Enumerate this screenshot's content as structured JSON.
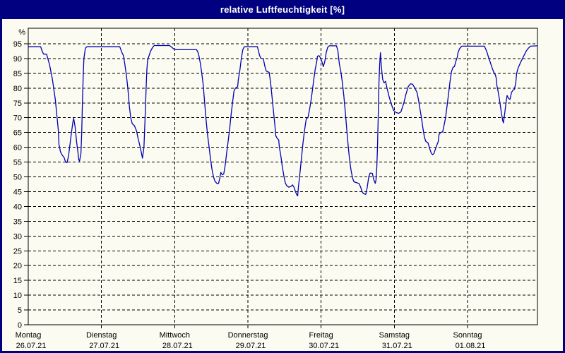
{
  "window": {
    "title": "relative Luftfeuchtigkeit [%]"
  },
  "colors": {
    "frame": "#000080",
    "title_bar": "#000080",
    "title_text": "#FFFFFF",
    "background": "#FBFBF1",
    "plot_border": "#000000",
    "gridline": "#000000",
    "axis_text": "#000000",
    "line": "#0000B4"
  },
  "chart_data": {
    "type": "line",
    "title": "relative Luftfeuchtigkeit [%]",
    "xlabel": "",
    "ylabel": "%",
    "ylim": [
      0,
      95
    ],
    "ytick_step": 5,
    "grid": "dashed",
    "legend": "none",
    "x_unit": "days since Montag 26.07.21 00:00",
    "categories": [
      "Montag",
      "Dienstag",
      "Mittwoch",
      "Donnerstag",
      "Freitag",
      "Samstag",
      "Sonntag"
    ],
    "dates": [
      "26.07.21",
      "27.07.21",
      "28.07.21",
      "29.07.21",
      "30.07.21",
      "31.07.21",
      "01.08.21"
    ],
    "series": [
      {
        "name": "relative Luftfeuchtigkeit",
        "color": "#0000B4",
        "points": [
          [
            0.0,
            94
          ],
          [
            0.17,
            94
          ],
          [
            0.19,
            92.5
          ],
          [
            0.21,
            91.5
          ],
          [
            0.25,
            91.5
          ],
          [
            0.29,
            88
          ],
          [
            0.33,
            83
          ],
          [
            0.37,
            76
          ],
          [
            0.39,
            71
          ],
          [
            0.41,
            66
          ],
          [
            0.42,
            61
          ],
          [
            0.44,
            58.5
          ],
          [
            0.46,
            57.5
          ],
          [
            0.49,
            56.5
          ],
          [
            0.51,
            55
          ],
          [
            0.53,
            54.8
          ],
          [
            0.55,
            57
          ],
          [
            0.57,
            61
          ],
          [
            0.59,
            65
          ],
          [
            0.61,
            68.5
          ],
          [
            0.62,
            69.8
          ],
          [
            0.64,
            67
          ],
          [
            0.66,
            62
          ],
          [
            0.68,
            58
          ],
          [
            0.69,
            55.8
          ],
          [
            0.7,
            55.3
          ],
          [
            0.72,
            58
          ],
          [
            0.73,
            65
          ],
          [
            0.74,
            75
          ],
          [
            0.75,
            84
          ],
          [
            0.76,
            90
          ],
          [
            0.78,
            93.5
          ],
          [
            0.8,
            94
          ],
          [
            1.25,
            94
          ],
          [
            1.28,
            92
          ],
          [
            1.3,
            91
          ],
          [
            1.32,
            88
          ],
          [
            1.34,
            84.5
          ],
          [
            1.36,
            80
          ],
          [
            1.38,
            74
          ],
          [
            1.4,
            70
          ],
          [
            1.42,
            68
          ],
          [
            1.45,
            67.3
          ],
          [
            1.48,
            65.5
          ],
          [
            1.5,
            63
          ],
          [
            1.53,
            60
          ],
          [
            1.55,
            57.5
          ],
          [
            1.56,
            56.3
          ],
          [
            1.58,
            60
          ],
          [
            1.59,
            66
          ],
          [
            1.6,
            73
          ],
          [
            1.61,
            80
          ],
          [
            1.62,
            86
          ],
          [
            1.63,
            89.5
          ],
          [
            1.65,
            91
          ],
          [
            1.67,
            92.5
          ],
          [
            1.7,
            93.8
          ],
          [
            1.72,
            94.4
          ],
          [
            1.93,
            94.4
          ],
          [
            1.96,
            93.8
          ],
          [
            1.99,
            93.2
          ],
          [
            2.03,
            93
          ],
          [
            2.3,
            93
          ],
          [
            2.32,
            92
          ],
          [
            2.33,
            91
          ],
          [
            2.35,
            88.5
          ],
          [
            2.37,
            85
          ],
          [
            2.39,
            81
          ],
          [
            2.41,
            75
          ],
          [
            2.43,
            69
          ],
          [
            2.45,
            64
          ],
          [
            2.47,
            60
          ],
          [
            2.49,
            56
          ],
          [
            2.51,
            52.5
          ],
          [
            2.53,
            50
          ],
          [
            2.55,
            48.5
          ],
          [
            2.58,
            47.7
          ],
          [
            2.6,
            47.8
          ],
          [
            2.62,
            50
          ],
          [
            2.63,
            51.5
          ],
          [
            2.65,
            50.7
          ],
          [
            2.67,
            51
          ],
          [
            2.69,
            54
          ],
          [
            2.71,
            58
          ],
          [
            2.73,
            62
          ],
          [
            2.75,
            66
          ],
          [
            2.77,
            71
          ],
          [
            2.79,
            75
          ],
          [
            2.81,
            79
          ],
          [
            2.83,
            80
          ],
          [
            2.86,
            80.5
          ],
          [
            2.87,
            83
          ],
          [
            2.89,
            86
          ],
          [
            2.91,
            90
          ],
          [
            2.93,
            93
          ],
          [
            2.95,
            94
          ],
          [
            3.13,
            94
          ],
          [
            3.14,
            93
          ],
          [
            3.16,
            91
          ],
          [
            3.18,
            90
          ],
          [
            3.21,
            90
          ],
          [
            3.23,
            87.5
          ],
          [
            3.25,
            85.8
          ],
          [
            3.29,
            85.3
          ],
          [
            3.31,
            82
          ],
          [
            3.33,
            77
          ],
          [
            3.35,
            72
          ],
          [
            3.37,
            67
          ],
          [
            3.38,
            64
          ],
          [
            3.4,
            63
          ],
          [
            3.42,
            62.5
          ],
          [
            3.43,
            60
          ],
          [
            3.45,
            57
          ],
          [
            3.47,
            53.5
          ],
          [
            3.49,
            50.5
          ],
          [
            3.51,
            48
          ],
          [
            3.53,
            47
          ],
          [
            3.56,
            46.5
          ],
          [
            3.59,
            46.8
          ],
          [
            3.61,
            47.3
          ],
          [
            3.63,
            46.5
          ],
          [
            3.65,
            45
          ],
          [
            3.67,
            43.8
          ],
          [
            3.68,
            43.6
          ],
          [
            3.69,
            46.5
          ],
          [
            3.71,
            51
          ],
          [
            3.73,
            56
          ],
          [
            3.75,
            61
          ],
          [
            3.77,
            65
          ],
          [
            3.79,
            68.5
          ],
          [
            3.8,
            69.8
          ],
          [
            3.82,
            70
          ],
          [
            3.84,
            72.5
          ],
          [
            3.86,
            75.5
          ],
          [
            3.88,
            79
          ],
          [
            3.9,
            83
          ],
          [
            3.92,
            86.5
          ],
          [
            3.94,
            89
          ],
          [
            3.95,
            90.8
          ],
          [
            3.97,
            91
          ],
          [
            3.99,
            90.3
          ],
          [
            4.01,
            89
          ],
          [
            4.03,
            87.3
          ],
          [
            4.05,
            89
          ],
          [
            4.07,
            92
          ],
          [
            4.09,
            93.8
          ],
          [
            4.11,
            94.3
          ],
          [
            4.21,
            94.3
          ],
          [
            4.23,
            92.5
          ],
          [
            4.24,
            90
          ],
          [
            4.25,
            88
          ],
          [
            4.27,
            85.5
          ],
          [
            4.29,
            82
          ],
          [
            4.31,
            77.5
          ],
          [
            4.33,
            72
          ],
          [
            4.35,
            66
          ],
          [
            4.37,
            60.5
          ],
          [
            4.39,
            55.5
          ],
          [
            4.41,
            52
          ],
          [
            4.43,
            49.5
          ],
          [
            4.45,
            48.3
          ],
          [
            4.49,
            48
          ],
          [
            4.52,
            47.7
          ],
          [
            4.54,
            46.5
          ],
          [
            4.56,
            45
          ],
          [
            4.58,
            44.3
          ],
          [
            4.61,
            44.1
          ],
          [
            4.63,
            46.5
          ],
          [
            4.65,
            50
          ],
          [
            4.67,
            51.3
          ],
          [
            4.7,
            51.2
          ],
          [
            4.72,
            49
          ],
          [
            4.74,
            47.8
          ],
          [
            4.75,
            49
          ],
          [
            4.76,
            53
          ],
          [
            4.77,
            60
          ],
          [
            4.78,
            70
          ],
          [
            4.79,
            82
          ],
          [
            4.8,
            88
          ],
          [
            4.81,
            92
          ],
          [
            4.82,
            88
          ],
          [
            4.84,
            83
          ],
          [
            4.86,
            81.8
          ],
          [
            4.88,
            82.3
          ],
          [
            4.9,
            80
          ],
          [
            4.93,
            77
          ],
          [
            4.96,
            74.5
          ],
          [
            4.99,
            72.5
          ],
          [
            5.02,
            71.8
          ],
          [
            5.06,
            71.5
          ],
          [
            5.09,
            72
          ],
          [
            5.13,
            75
          ],
          [
            5.16,
            78
          ],
          [
            5.19,
            80.5
          ],
          [
            5.22,
            81.5
          ],
          [
            5.25,
            81.3
          ],
          [
            5.28,
            80
          ],
          [
            5.31,
            78.5
          ],
          [
            5.33,
            76
          ],
          [
            5.35,
            73
          ],
          [
            5.37,
            70
          ],
          [
            5.39,
            66.5
          ],
          [
            5.41,
            63.5
          ],
          [
            5.43,
            62
          ],
          [
            5.46,
            61.5
          ],
          [
            5.48,
            59.8
          ],
          [
            5.5,
            58.3
          ],
          [
            5.52,
            57.5
          ],
          [
            5.54,
            57.8
          ],
          [
            5.57,
            60
          ],
          [
            5.6,
            62
          ],
          [
            5.61,
            64.3
          ],
          [
            5.63,
            65
          ],
          [
            5.66,
            65.2
          ],
          [
            5.68,
            67.5
          ],
          [
            5.7,
            70
          ],
          [
            5.72,
            74
          ],
          [
            5.74,
            78
          ],
          [
            5.76,
            82
          ],
          [
            5.78,
            85.5
          ],
          [
            5.8,
            87
          ],
          [
            5.82,
            87.3
          ],
          [
            5.84,
            89
          ],
          [
            5.86,
            90.5
          ],
          [
            5.87,
            92
          ],
          [
            5.89,
            93.3
          ],
          [
            5.92,
            94.2
          ],
          [
            6.23,
            94.2
          ],
          [
            6.26,
            92.5
          ],
          [
            6.28,
            91
          ],
          [
            6.3,
            89.5
          ],
          [
            6.32,
            88
          ],
          [
            6.34,
            86.5
          ],
          [
            6.36,
            85.3
          ],
          [
            6.38,
            84.5
          ],
          [
            6.39,
            83.5
          ],
          [
            6.4,
            81
          ],
          [
            6.42,
            78.5
          ],
          [
            6.44,
            75.5
          ],
          [
            6.46,
            72
          ],
          [
            6.48,
            69
          ],
          [
            6.49,
            68.3
          ],
          [
            6.51,
            72
          ],
          [
            6.53,
            76
          ],
          [
            6.54,
            77.5
          ],
          [
            6.56,
            76.5
          ],
          [
            6.58,
            76.2
          ],
          [
            6.6,
            78.5
          ],
          [
            6.62,
            79.3
          ],
          [
            6.64,
            79.6
          ],
          [
            6.66,
            82
          ],
          [
            6.67,
            85
          ],
          [
            6.69,
            86.8
          ],
          [
            6.72,
            88.5
          ],
          [
            6.75,
            90
          ],
          [
            6.78,
            91.5
          ],
          [
            6.8,
            92.5
          ],
          [
            6.83,
            93.5
          ],
          [
            6.86,
            94.2
          ],
          [
            6.95,
            94.3
          ]
        ]
      }
    ]
  }
}
